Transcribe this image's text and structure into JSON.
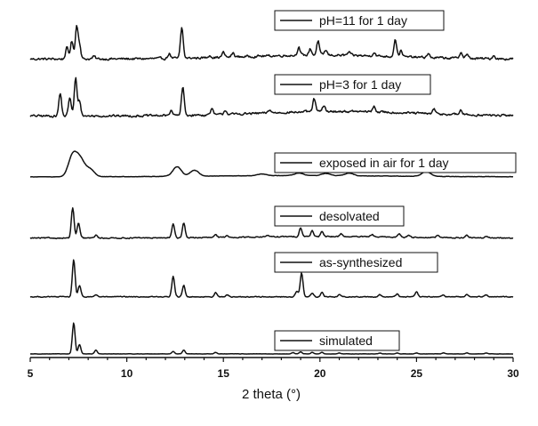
{
  "chart_data": {
    "type": "line",
    "xlabel": "2 theta (°)",
    "xlim": [
      5,
      30
    ],
    "xticks": [
      5,
      10,
      15,
      20,
      25,
      30
    ],
    "y_axis_shown": false,
    "stacked_offset": true,
    "legend_placement": "one boxed legend entry above the right part of each trace",
    "series": [
      {
        "name": "pH=11 for 1 day",
        "peaks": [
          [
            6.9,
            0.35
          ],
          [
            7.15,
            0.55
          ],
          [
            7.4,
            1.0
          ],
          [
            7.55,
            0.45
          ],
          [
            8.3,
            0.08
          ],
          [
            12.2,
            0.15
          ],
          [
            12.85,
            0.95
          ],
          [
            14.3,
            0.08
          ],
          [
            15.0,
            0.15
          ],
          [
            15.5,
            0.12
          ],
          [
            18.9,
            0.25
          ],
          [
            19.5,
            0.2
          ],
          [
            19.9,
            0.45
          ],
          [
            20.3,
            0.15
          ],
          [
            21.5,
            0.1
          ],
          [
            22.8,
            0.12
          ],
          [
            23.9,
            0.55
          ],
          [
            24.2,
            0.2
          ],
          [
            25.6,
            0.12
          ],
          [
            27.3,
            0.2
          ],
          [
            27.6,
            0.12
          ],
          [
            29.0,
            0.1
          ]
        ],
        "noise": 0.06,
        "hump": [
          [
            20,
            0.12,
            4.0
          ]
        ]
      },
      {
        "name": "pH=3 for 1 day",
        "peaks": [
          [
            6.55,
            0.6
          ],
          [
            7.05,
            0.5
          ],
          [
            7.35,
            1.0
          ],
          [
            7.55,
            0.4
          ],
          [
            12.3,
            0.15
          ],
          [
            12.9,
            0.75
          ],
          [
            14.4,
            0.15
          ],
          [
            15.1,
            0.12
          ],
          [
            17.4,
            0.08
          ],
          [
            19.7,
            0.35
          ],
          [
            20.2,
            0.15
          ],
          [
            22.8,
            0.15
          ],
          [
            25.9,
            0.12
          ],
          [
            27.3,
            0.12
          ]
        ],
        "noise": 0.05,
        "hump": [
          [
            21,
            0.12,
            4.0
          ]
        ]
      },
      {
        "name": "exposed in air for 1 day",
        "peaks": [
          [
            7.2,
            1.0
          ],
          [
            7.6,
            0.75
          ],
          [
            8.1,
            0.35
          ],
          [
            12.6,
            0.45
          ],
          [
            13.5,
            0.28
          ],
          [
            17.0,
            0.08
          ],
          [
            18.9,
            0.12
          ],
          [
            20.3,
            0.1
          ],
          [
            21.5,
            0.12
          ],
          [
            25.5,
            0.22
          ]
        ],
        "noise": 0.015,
        "hump": [
          [
            19,
            0.06,
            5.0
          ]
        ]
      },
      {
        "name": "desolvated",
        "peaks": [
          [
            7.2,
            1.0
          ],
          [
            7.5,
            0.5
          ],
          [
            8.4,
            0.1
          ],
          [
            12.4,
            0.45
          ],
          [
            12.95,
            0.5
          ],
          [
            14.6,
            0.08
          ],
          [
            15.2,
            0.06
          ],
          [
            17.3,
            0.06
          ],
          [
            19.0,
            0.3
          ],
          [
            19.6,
            0.2
          ],
          [
            20.1,
            0.15
          ],
          [
            21.1,
            0.1
          ],
          [
            22.7,
            0.08
          ],
          [
            24.1,
            0.12
          ],
          [
            24.6,
            0.08
          ],
          [
            26.1,
            0.08
          ],
          [
            27.6,
            0.1
          ],
          [
            28.6,
            0.06
          ]
        ],
        "noise": 0.03,
        "hump": [
          [
            20,
            0.05,
            4.0
          ]
        ]
      },
      {
        "name": "as-synthesized",
        "peaks": [
          [
            7.25,
            1.0
          ],
          [
            7.55,
            0.3
          ],
          [
            8.4,
            0.06
          ],
          [
            12.4,
            0.55
          ],
          [
            12.95,
            0.3
          ],
          [
            14.6,
            0.12
          ],
          [
            15.2,
            0.05
          ],
          [
            18.8,
            0.15
          ],
          [
            19.05,
            0.65
          ],
          [
            19.6,
            0.1
          ],
          [
            20.1,
            0.12
          ],
          [
            21.0,
            0.06
          ],
          [
            23.1,
            0.06
          ],
          [
            24.0,
            0.08
          ],
          [
            25.0,
            0.12
          ],
          [
            26.4,
            0.05
          ],
          [
            27.6,
            0.06
          ],
          [
            28.6,
            0.05
          ]
        ],
        "noise": 0.02,
        "hump": []
      },
      {
        "name": "simulated",
        "peaks": [
          [
            7.25,
            1.0
          ],
          [
            7.55,
            0.3
          ],
          [
            8.4,
            0.12
          ],
          [
            12.4,
            0.08
          ],
          [
            12.95,
            0.12
          ],
          [
            14.6,
            0.05
          ],
          [
            18.6,
            0.04
          ],
          [
            19.0,
            0.06
          ],
          [
            19.6,
            0.05
          ],
          [
            20.1,
            0.05
          ],
          [
            21.0,
            0.03
          ],
          [
            23.1,
            0.03
          ],
          [
            24.0,
            0.03
          ],
          [
            25.0,
            0.03
          ],
          [
            26.4,
            0.03
          ],
          [
            27.6,
            0.03
          ],
          [
            28.6,
            0.03
          ]
        ],
        "noise": 0.006,
        "hump": []
      }
    ]
  }
}
